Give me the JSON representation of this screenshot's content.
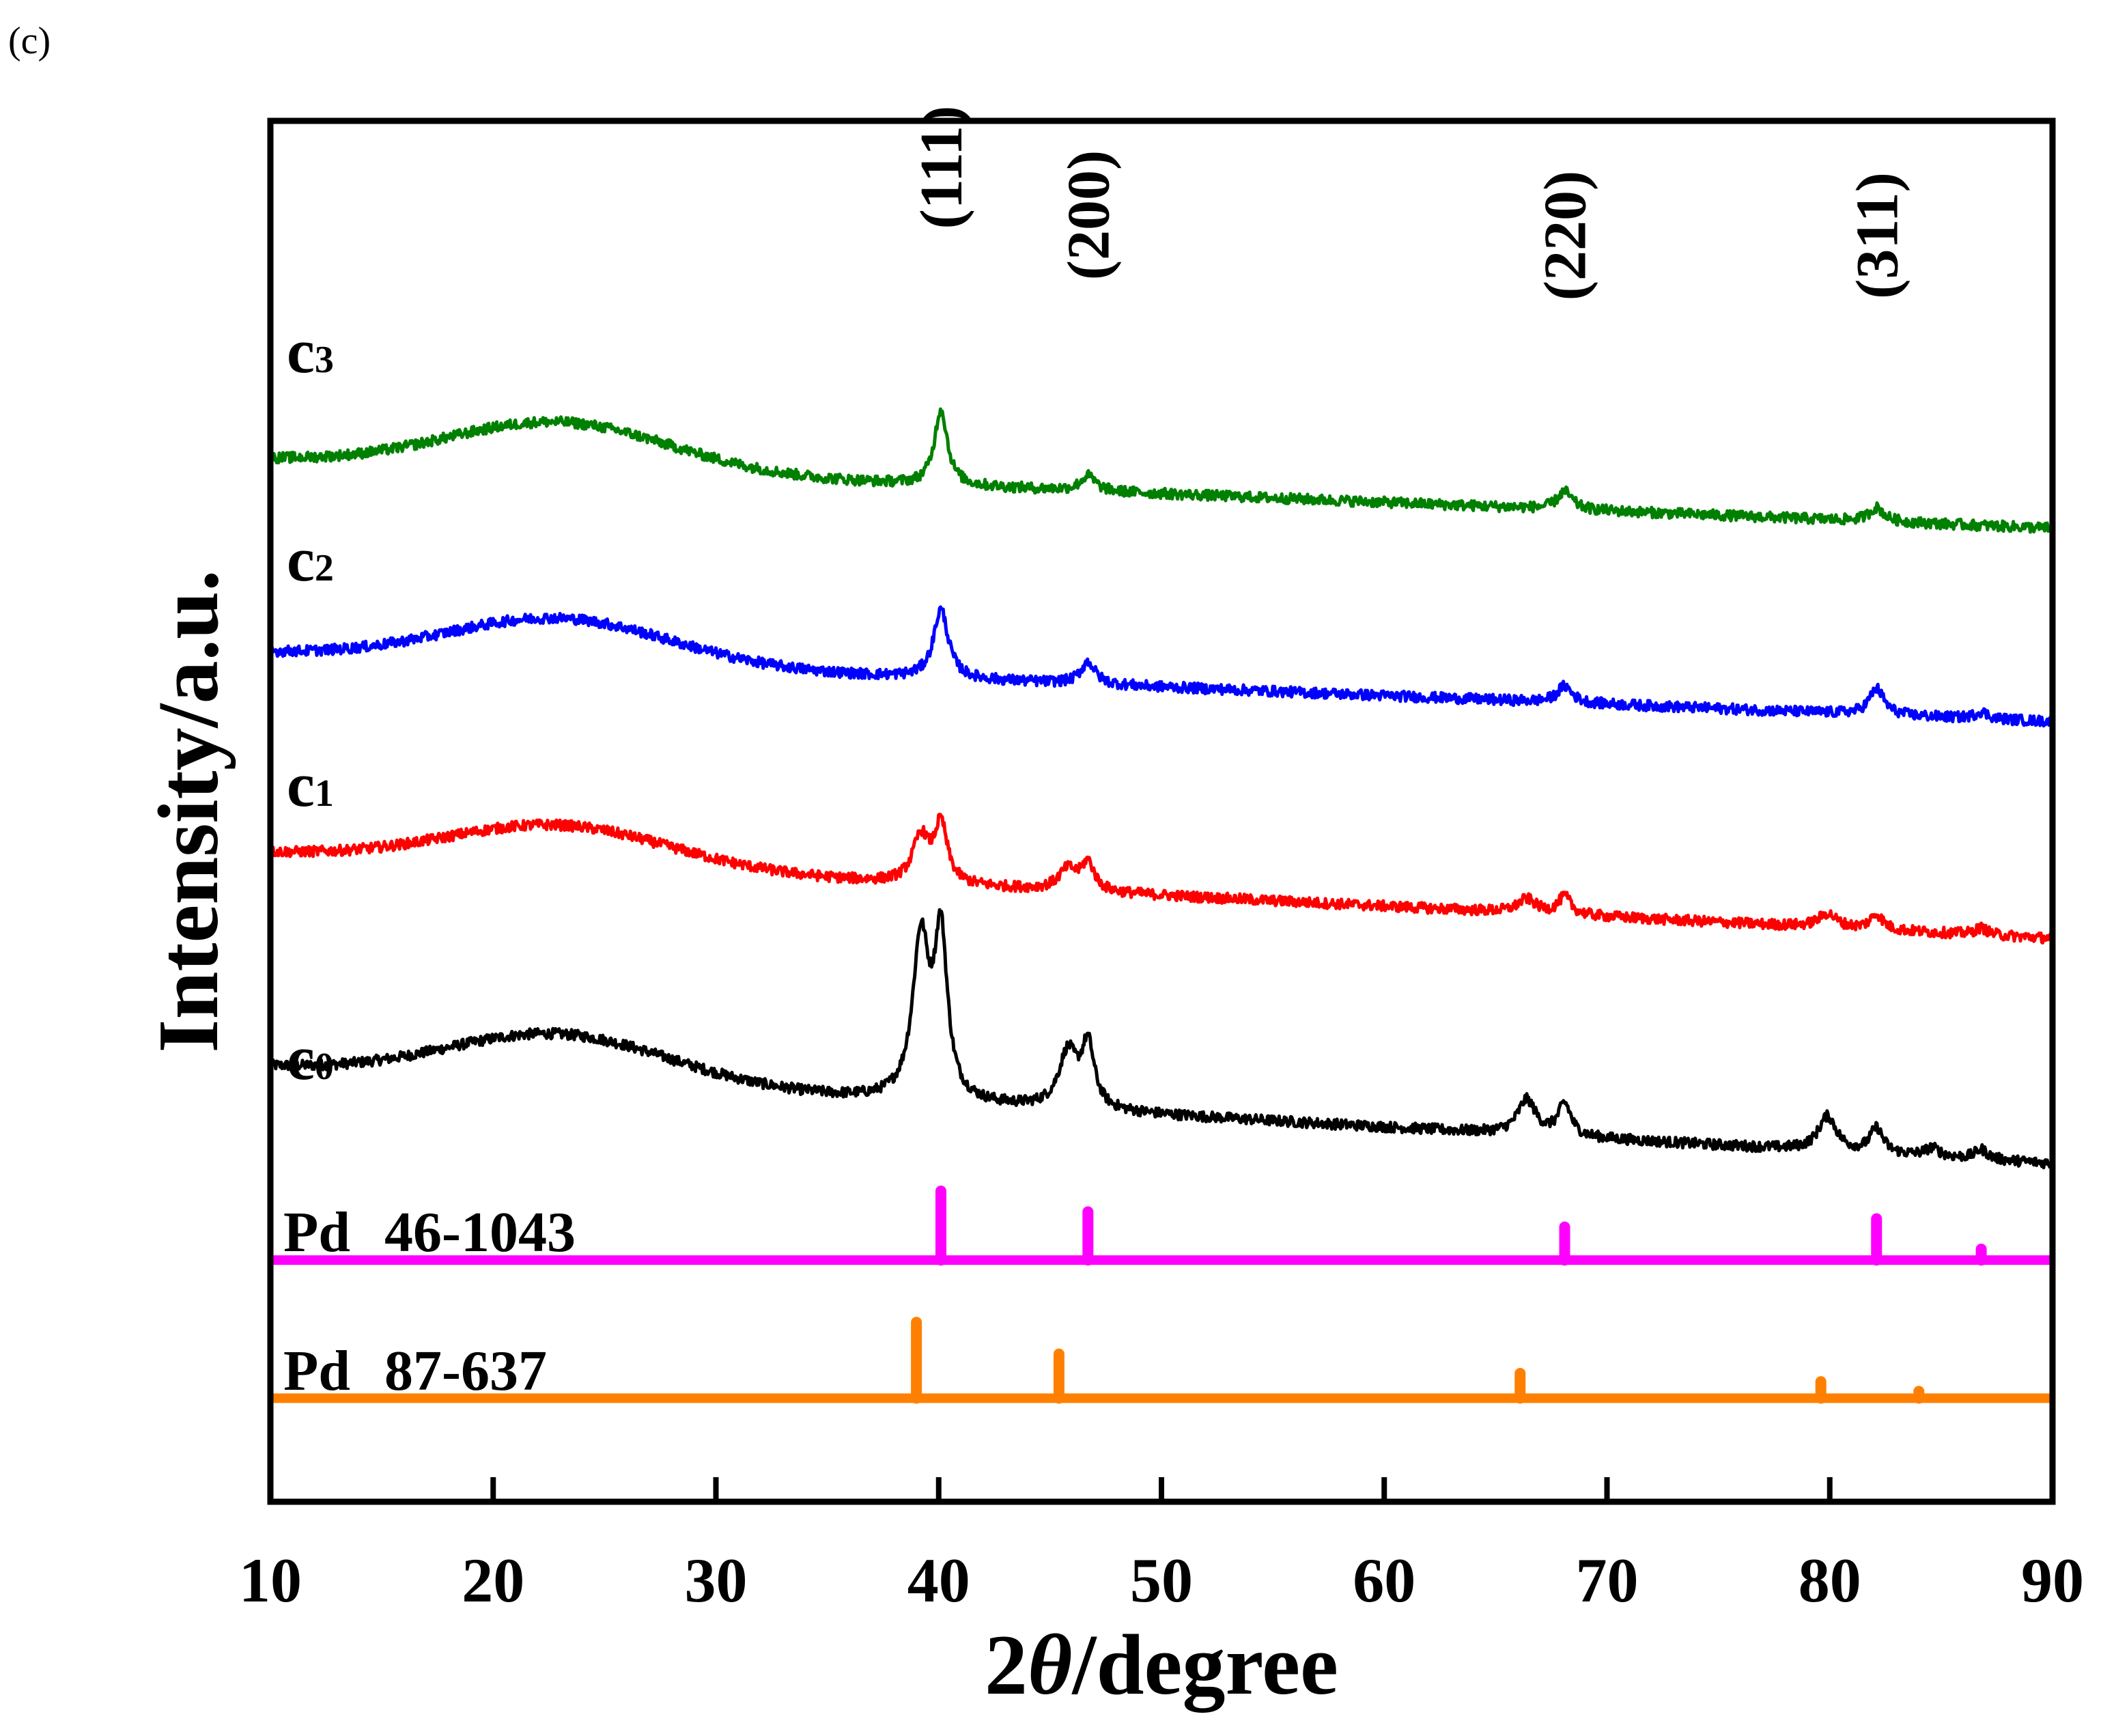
{
  "panel_label": "(c)",
  "chart_data": {
    "type": "line",
    "title": "",
    "xlabel": "2θ/degree",
    "xlabel_parts": {
      "prefix": "2",
      "symbol": "θ",
      "suffix": "/degree"
    },
    "ylabel": "Intensity/a.u.",
    "xlim": [
      10,
      90
    ],
    "xticks": [
      10,
      20,
      30,
      40,
      50,
      60,
      70,
      80,
      90
    ],
    "xtick_labels": [
      "10",
      "20",
      "30",
      "40",
      "50",
      "60",
      "70",
      "80",
      "90"
    ],
    "ylim": [
      0,
      100
    ],
    "yticks_shown": false,
    "grid": false,
    "peak_annotations": [
      {
        "label": "(111)",
        "x": 40.1
      },
      {
        "label": "(200)",
        "x": 46.7
      },
      {
        "label": "(220)",
        "x": 68.1
      },
      {
        "label": "(311)",
        "x": 82.1
      }
    ],
    "series": [
      {
        "name": "c0",
        "label_main": "c",
        "label_sub": "0",
        "color": "#000000",
        "baseline_start": 31.5,
        "baseline_end": 24.5,
        "hump_center": 23,
        "hump_height": 3.5,
        "hump_width": 7,
        "peaks": [
          {
            "x": 39.2,
            "height": 11.5,
            "width": 0.45
          },
          {
            "x": 40.1,
            "height": 11.5,
            "width": 0.35
          },
          {
            "x": 45.8,
            "height": 4.0,
            "width": 0.5
          },
          {
            "x": 46.7,
            "height": 4.5,
            "width": 0.35
          },
          {
            "x": 66.4,
            "height": 2.5,
            "width": 0.5
          },
          {
            "x": 68.1,
            "height": 2.3,
            "width": 0.35
          },
          {
            "x": 79.9,
            "height": 2.5,
            "width": 0.5
          },
          {
            "x": 82.1,
            "height": 1.8,
            "width": 0.35
          },
          {
            "x": 84.6,
            "height": 0.6,
            "width": 0.4
          },
          {
            "x": 86.8,
            "height": 0.7,
            "width": 0.35
          }
        ]
      },
      {
        "name": "c1",
        "label_main": "c",
        "label_sub": "1",
        "color": "#ff0000",
        "baseline_start": 47.0,
        "baseline_end": 40.8,
        "hump_center": 23,
        "hump_height": 3.0,
        "hump_width": 7,
        "peaks": [
          {
            "x": 39.2,
            "height": 3.3,
            "width": 0.45
          },
          {
            "x": 40.1,
            "height": 4.2,
            "width": 0.35
          },
          {
            "x": 45.8,
            "height": 1.5,
            "width": 0.5
          },
          {
            "x": 46.7,
            "height": 2.0,
            "width": 0.35
          },
          {
            "x": 66.4,
            "height": 1.0,
            "width": 0.5
          },
          {
            "x": 68.1,
            "height": 1.3,
            "width": 0.35
          },
          {
            "x": 79.9,
            "height": 1.0,
            "width": 0.5
          },
          {
            "x": 82.1,
            "height": 1.1,
            "width": 0.35
          },
          {
            "x": 86.8,
            "height": 0.5,
            "width": 0.35
          }
        ]
      },
      {
        "name": "c2",
        "label_main": "c",
        "label_sub": "2",
        "color": "#0000ff",
        "baseline_start": 61.5,
        "baseline_end": 56.5,
        "hump_center": 23,
        "hump_height": 3.3,
        "hump_width": 7,
        "peaks": [
          {
            "x": 40.1,
            "height": 5.0,
            "width": 0.4
          },
          {
            "x": 46.7,
            "height": 1.6,
            "width": 0.4
          },
          {
            "x": 68.1,
            "height": 1.2,
            "width": 0.4
          },
          {
            "x": 82.1,
            "height": 1.9,
            "width": 0.4
          },
          {
            "x": 86.8,
            "height": 0.5,
            "width": 0.35
          }
        ]
      },
      {
        "name": "c3",
        "label_main": "c",
        "label_sub": "3",
        "color": "#008000",
        "baseline_start": 75.5,
        "baseline_end": 70.5,
        "hump_center": 23,
        "hump_height": 3.5,
        "hump_width": 7,
        "peaks": [
          {
            "x": 40.1,
            "height": 5.5,
            "width": 0.35
          },
          {
            "x": 46.7,
            "height": 1.1,
            "width": 0.4
          },
          {
            "x": 68.1,
            "height": 1.3,
            "width": 0.4
          },
          {
            "x": 82.1,
            "height": 1.0,
            "width": 0.4
          }
        ]
      }
    ],
    "reference_patterns": [
      {
        "name": "Pd 46-1043",
        "label_name": "Pd",
        "label_card": "46-1043",
        "color": "#ff00ff",
        "baseline": 17.5,
        "sticks": [
          {
            "x": 40.1,
            "height": 5.0
          },
          {
            "x": 46.7,
            "height": 3.5
          },
          {
            "x": 68.1,
            "height": 2.4
          },
          {
            "x": 82.1,
            "height": 3.0
          },
          {
            "x": 86.8,
            "height": 0.8
          }
        ]
      },
      {
        "name": "Pd 87-637",
        "label_name": "Pd",
        "label_card": "87-637",
        "color": "#ff8000",
        "baseline": 7.5,
        "sticks": [
          {
            "x": 39.0,
            "height": 5.5
          },
          {
            "x": 45.4,
            "height": 3.2
          },
          {
            "x": 66.1,
            "height": 1.8
          },
          {
            "x": 79.6,
            "height": 1.2
          },
          {
            "x": 84.0,
            "height": 0.5
          }
        ]
      }
    ]
  }
}
